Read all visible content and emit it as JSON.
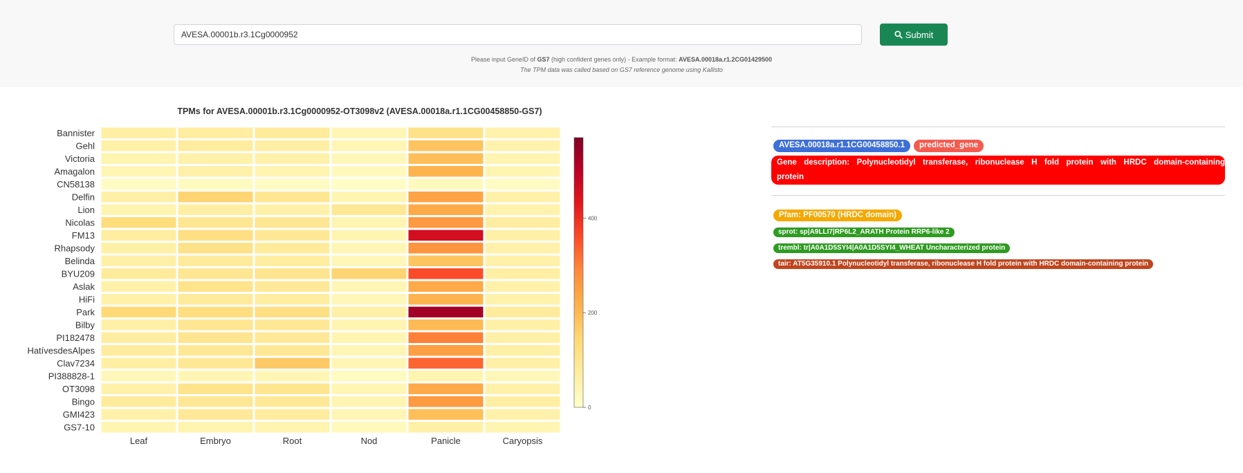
{
  "search": {
    "value": "AVESA.00001b.r3.1Cg0000952",
    "submit_label": "Submit"
  },
  "hint": {
    "prefix": "Please input GeneID of ",
    "genome": "GS7",
    "middle": " (high confident genes only) - Example format: ",
    "example": "AVESA.00018a.r1.2CG01429500",
    "note": "The TPM data was called based on GS7 reference genome using Kallisto"
  },
  "chart_data": {
    "type": "heatmap",
    "title": "TPMs for AVESA.00001b.r3.1Cg0000952-OT3098v2 (AVESA.00018a.r1.1CG00458850-GS7)",
    "x": [
      "Leaf",
      "Embryo",
      "Root",
      "Nod",
      "Panicle",
      "Caryopsis"
    ],
    "y": [
      "Bannister",
      "Gehl",
      "Victoria",
      "Amagalon",
      "CN58138",
      "Delfin",
      "Lion",
      "Nicolas",
      "FM13",
      "Rhapsody",
      "Belinda",
      "BYU209",
      "Aslak",
      "HiFi",
      "Park",
      "Bilby",
      "PI182478",
      "HatívesdesAlpes",
      "Clav7234",
      "PI388828-1",
      "OT3098",
      "Bingo",
      "GMI423",
      "GS7-10"
    ],
    "z": [
      [
        65,
        70,
        80,
        35,
        110,
        50
      ],
      [
        60,
        75,
        65,
        35,
        180,
        50
      ],
      [
        45,
        55,
        55,
        30,
        190,
        45
      ],
      [
        35,
        55,
        45,
        25,
        210,
        40
      ],
      [
        15,
        20,
        15,
        10,
        25,
        15
      ],
      [
        60,
        150,
        95,
        40,
        240,
        55
      ],
      [
        45,
        65,
        55,
        90,
        230,
        50
      ],
      [
        130,
        95,
        95,
        40,
        260,
        70
      ],
      [
        70,
        120,
        90,
        40,
        460,
        60
      ],
      [
        60,
        110,
        80,
        35,
        270,
        55
      ],
      [
        60,
        80,
        70,
        30,
        180,
        55
      ],
      [
        80,
        95,
        100,
        150,
        360,
        65
      ],
      [
        55,
        105,
        85,
        35,
        230,
        55
      ],
      [
        55,
        80,
        70,
        30,
        210,
        50
      ],
      [
        140,
        125,
        120,
        60,
        530,
        80
      ],
      [
        60,
        95,
        90,
        40,
        200,
        60
      ],
      [
        70,
        100,
        85,
        40,
        300,
        60
      ],
      [
        75,
        90,
        90,
        35,
        250,
        60
      ],
      [
        65,
        90,
        170,
        35,
        330,
        60
      ],
      [
        30,
        35,
        35,
        20,
        45,
        30
      ],
      [
        55,
        105,
        100,
        35,
        230,
        55
      ],
      [
        80,
        90,
        85,
        40,
        260,
        65
      ],
      [
        55,
        85,
        75,
        35,
        190,
        55
      ],
      [
        40,
        45,
        45,
        25,
        60,
        40
      ]
    ],
    "zmin": 0,
    "zmax": 570,
    "colorbar_ticks": [
      0,
      200,
      400
    ],
    "colorscale": [
      "#ffffcc",
      "#ffeda0",
      "#fed976",
      "#feb24c",
      "#fd8d3c",
      "#fc4e2a",
      "#e31a1c",
      "#bd0026",
      "#800026"
    ]
  },
  "gene": {
    "id_badge": "AVESA.00018a.r1.1CG00458850.1",
    "type_badge": "predicted_gene",
    "description": "Gene description: Polynucleotidyl transferase, ribonuclease H fold protein with HRDC domain-containing protein",
    "pfam": "Pfam: PF00570 (HRDC domain)",
    "sprot": "sprot: sp|A9LLI7|RP6L2_ARATH Protein RRP6-like 2",
    "trembl": "trembl: tr|A0A1D5SYI4|A0A1D5SYI4_WHEAT Uncharacterized protein",
    "tair": "tair: AT5G35910.1 Polynucleotidyl transferase, ribonuclease H fold protein with HRDC domain-containing protein"
  },
  "colors": {
    "submit": "#198754",
    "id_badge": "#3d6fd6",
    "type_badge": "#f45b4f",
    "description": "#ff0000",
    "pfam": "#f5a800",
    "sprot": "#2f9b22",
    "trembl": "#2f9b22",
    "tair": "#c0451e"
  }
}
